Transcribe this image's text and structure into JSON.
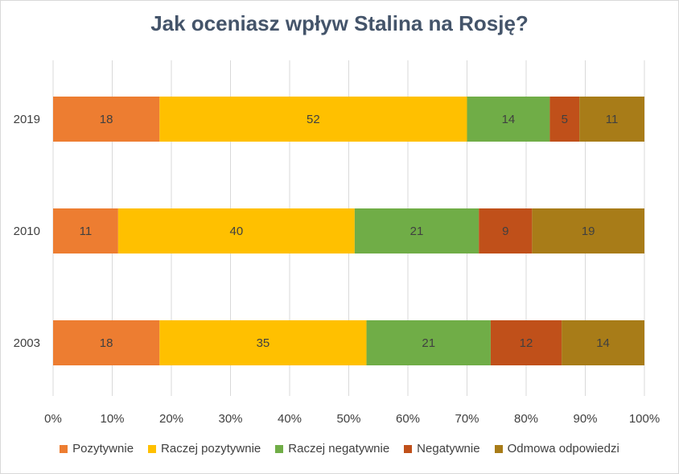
{
  "chart_data": {
    "type": "bar",
    "orientation": "horizontal",
    "stacked": "percent",
    "title": "Jak oceniasz wpływ Stalina na Rosję?",
    "categories": [
      "2019",
      "2010",
      "2003"
    ],
    "series": [
      {
        "name": "Pozytywnie",
        "color": "#ED7D31",
        "values": [
          18,
          11,
          18
        ]
      },
      {
        "name": "Raczej pozytywnie",
        "color": "#FFC000",
        "values": [
          52,
          40,
          35
        ]
      },
      {
        "name": "Raczej negatywnie",
        "color": "#70AD47",
        "values": [
          14,
          21,
          21
        ]
      },
      {
        "name": "Negatywnie",
        "color": "#C0501A",
        "values": [
          5,
          9,
          12
        ]
      },
      {
        "name": "Odmowa odpowiedzi",
        "color": "#A87C18",
        "values": [
          11,
          19,
          14
        ]
      }
    ],
    "xlim": [
      0,
      100
    ],
    "x_ticks": [
      "0%",
      "10%",
      "20%",
      "30%",
      "40%",
      "50%",
      "60%",
      "70%",
      "80%",
      "90%",
      "100%"
    ],
    "grid": "vertical",
    "legend": "bottom"
  }
}
